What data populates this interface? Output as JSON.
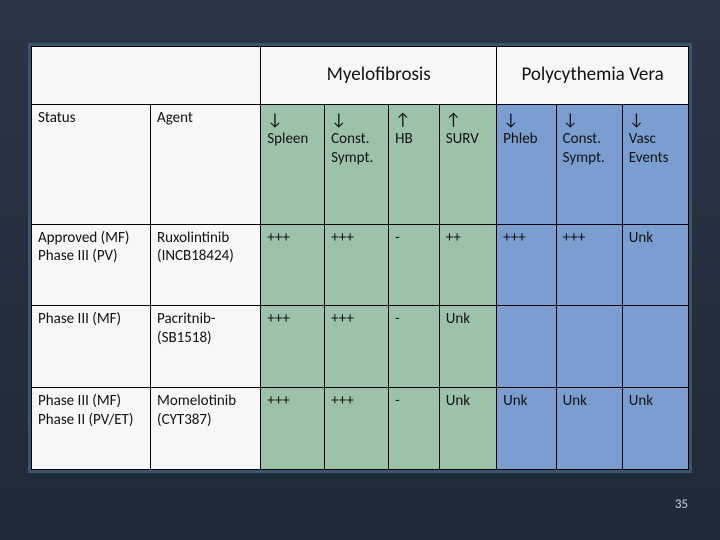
{
  "header": {
    "group1": "Myelofibrosis",
    "group2": "Polycythemia Vera"
  },
  "columns": {
    "status": "Status",
    "agent": "Agent",
    "mf": [
      {
        "arrow": "↓",
        "label": "Spleen"
      },
      {
        "arrow": "↓",
        "label": "Const. Sympt."
      },
      {
        "arrow": "↑",
        "label": "HB"
      },
      {
        "arrow": "↑",
        "label": "SURV"
      }
    ],
    "pv": [
      {
        "arrow": "↓",
        "label": "Phleb"
      },
      {
        "arrow": "↓",
        "label": "Const. Sympt."
      },
      {
        "arrow": "↓",
        "label": "Vasc Events"
      }
    ]
  },
  "rows": [
    {
      "status": "Approved (MF)\nPhase III (PV)",
      "agent": "Ruxolintinib (INCB18424)",
      "mf": [
        "+++",
        "+++",
        "-",
        "++"
      ],
      "pv": [
        "+++",
        "+++",
        "Unk"
      ]
    },
    {
      "status": "Phase III (MF)",
      "agent": "Pacritnib- (SB1518)",
      "mf": [
        "+++",
        "+++",
        "-",
        "Unk"
      ],
      "pv": [
        "",
        "",
        ""
      ]
    },
    {
      "status": "Phase III (MF) Phase II (PV/ET)",
      "agent": "Momelotinib (CYT387)",
      "mf": [
        "+++",
        "+++",
        "-",
        "Unk"
      ],
      "pv": [
        "Unk",
        "Unk",
        "Unk"
      ]
    }
  ],
  "pageNumber": "35",
  "colors": {
    "slideBg": "#f6f7f9",
    "slideBorder": "#3b5570",
    "mfCell": "#9cc3a9",
    "pvCell": "#7a9ecf",
    "bodyGradTop": "#2a3646",
    "bodyGradBot": "#1f2a38"
  }
}
